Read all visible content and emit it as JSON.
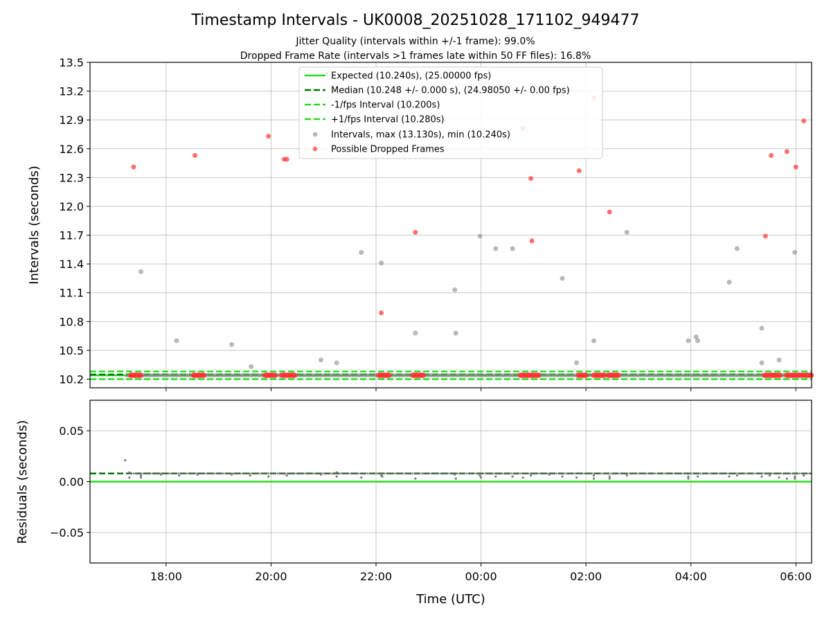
{
  "chart_data": [
    {
      "type": "scatter",
      "title": "Timestamp Intervals - UK0008_20251028_171102_949477",
      "subtitle_lines": [
        "Jitter Quality (intervals within +/-1 frame): 99.0%",
        "Dropped Frame Rate (intervals >1 frames late within 50 FF files): 16.8%"
      ],
      "ylabel": "Intervals (seconds)",
      "xlim": [
        16.55,
        30.3
      ],
      "ylim": [
        10.11,
        13.5
      ],
      "yticks": [
        10.2,
        10.5,
        10.8,
        11.1,
        11.4,
        11.7,
        12.0,
        12.3,
        12.6,
        12.9,
        13.2,
        13.5
      ],
      "ytick_labels": [
        "10.2",
        "10.5",
        "10.8",
        "11.1",
        "11.4",
        "11.7",
        "12.0",
        "12.3",
        "12.6",
        "12.9",
        "13.2",
        "13.5"
      ],
      "xticks": [
        18,
        20,
        22,
        24,
        26,
        28,
        30
      ],
      "grid": true,
      "legend_position": "top-center",
      "reference_lines": [
        {
          "name": "Expected (10.240s), (25.00000 fps)",
          "y": 10.24,
          "color": "#22dd22",
          "style": "solid"
        },
        {
          "name": "Median (10.248 +/- 0.000 s), (24.98050 +/- 0.00 fps)",
          "y": 10.248,
          "color": "#007700",
          "style": "dashed"
        },
        {
          "name": "-1/fps Interval (10.200s)",
          "y": 10.2,
          "color": "#22dd22",
          "style": "dashed"
        },
        {
          "name": "+1/fps Interval (10.280s)",
          "y": 10.28,
          "color": "#22dd22",
          "style": "dashed"
        }
      ],
      "series": [
        {
          "name": "Intervals, max (13.130s), min (10.240s)",
          "color": "#888888",
          "points": [
            [
              17.52,
              11.32
            ],
            [
              18.2,
              10.6
            ],
            [
              19.25,
              10.56
            ],
            [
              19.62,
              10.33
            ],
            [
              20.95,
              10.4
            ],
            [
              21.25,
              10.37
            ],
            [
              21.72,
              11.52
            ],
            [
              22.1,
              11.41
            ],
            [
              22.75,
              10.68
            ],
            [
              23.5,
              11.13
            ],
            [
              23.52,
              10.68
            ],
            [
              23.98,
              11.69
            ],
            [
              24.28,
              11.56
            ],
            [
              24.6,
              11.56
            ],
            [
              25.55,
              11.25
            ],
            [
              25.82,
              10.37
            ],
            [
              26.15,
              10.6
            ],
            [
              26.78,
              11.73
            ],
            [
              27.95,
              10.6
            ],
            [
              28.1,
              10.64
            ],
            [
              28.13,
              10.6
            ],
            [
              28.73,
              11.21
            ],
            [
              28.88,
              11.56
            ],
            [
              29.35,
              10.73
            ],
            [
              29.35,
              10.37
            ],
            [
              29.68,
              10.4
            ],
            [
              29.98,
              11.52
            ]
          ]
        },
        {
          "name": "Possible Dropped Frames",
          "color": "#ff3333",
          "points": [
            [
              17.38,
              12.41
            ],
            [
              18.55,
              12.53
            ],
            [
              19.95,
              12.73
            ],
            [
              20.25,
              12.49
            ],
            [
              20.3,
              12.49
            ],
            [
              22.1,
              10.89
            ],
            [
              22.75,
              11.73
            ],
            [
              24.8,
              12.81
            ],
            [
              24.95,
              12.29
            ],
            [
              24.97,
              11.64
            ],
            [
              25.87,
              12.37
            ],
            [
              26.15,
              13.13
            ],
            [
              26.45,
              11.94
            ],
            [
              29.42,
              11.69
            ],
            [
              29.53,
              12.53
            ],
            [
              29.83,
              12.57
            ],
            [
              30.0,
              12.41
            ],
            [
              30.15,
              12.89
            ]
          ],
          "baseline_clusters": [
            [
              17.32,
              17.52
            ],
            [
              18.52,
              18.72
            ],
            [
              19.88,
              20.08
            ],
            [
              20.2,
              20.45
            ],
            [
              22.05,
              22.25
            ],
            [
              22.7,
              22.9
            ],
            [
              24.75,
              25.12
            ],
            [
              25.85,
              26.02
            ],
            [
              26.15,
              26.35
            ],
            [
              26.42,
              26.62
            ],
            [
              29.4,
              29.72
            ],
            [
              29.82,
              30.3
            ]
          ],
          "baseline_y": 10.24
        }
      ]
    },
    {
      "type": "scatter",
      "ylabel": "Residuals (seconds)",
      "xlabel": "Time (UTC)",
      "xlim": [
        16.55,
        30.3
      ],
      "ylim": [
        -0.08,
        0.08
      ],
      "yticks": [
        -0.05,
        0.0,
        0.05
      ],
      "ytick_labels": [
        "−0.05",
        "0.00",
        "0.05"
      ],
      "xticks": [
        18,
        20,
        22,
        24,
        26,
        28,
        30
      ],
      "xtick_labels": [
        "18:00",
        "20:00",
        "22:00",
        "00:00",
        "02:00",
        "04:00",
        "06:00"
      ],
      "grid": true,
      "reference_lines": [
        {
          "name": "Expected",
          "y": 0.0,
          "color": "#22dd22",
          "style": "solid"
        },
        {
          "name": "Median",
          "y": 0.008,
          "color": "#007700",
          "style": "dashed"
        }
      ],
      "series": [
        {
          "name": "Residuals",
          "color": "#666666",
          "outliers": [
            [
              17.22,
              0.021
            ]
          ],
          "points": [
            [
              17.3,
              0.004
            ],
            [
              17.3,
              0.009
            ],
            [
              17.52,
              0.006
            ],
            [
              17.52,
              0.004
            ],
            [
              17.9,
              0.007
            ],
            [
              18.25,
              0.006
            ],
            [
              18.6,
              0.007
            ],
            [
              19.25,
              0.007
            ],
            [
              19.6,
              0.006
            ],
            [
              19.95,
              0.005
            ],
            [
              20.25,
              0.008
            ],
            [
              20.3,
              0.006
            ],
            [
              20.95,
              0.007
            ],
            [
              21.25,
              0.005
            ],
            [
              21.25,
              0.009
            ],
            [
              21.72,
              0.004
            ],
            [
              22.1,
              0.006
            ],
            [
              22.12,
              0.005
            ],
            [
              22.75,
              0.003
            ],
            [
              23.5,
              0.007
            ],
            [
              23.52,
              0.003
            ],
            [
              23.98,
              0.006
            ],
            [
              24.0,
              0.004
            ],
            [
              24.28,
              0.005
            ],
            [
              24.6,
              0.005
            ],
            [
              24.8,
              0.004
            ],
            [
              24.95,
              0.006
            ],
            [
              25.3,
              0.007
            ],
            [
              25.55,
              0.005
            ],
            [
              25.82,
              0.004
            ],
            [
              26.15,
              0.006
            ],
            [
              26.15,
              0.003
            ],
            [
              26.45,
              0.005
            ],
            [
              26.45,
              0.003
            ],
            [
              26.78,
              0.006
            ],
            [
              27.95,
              0.005
            ],
            [
              27.95,
              0.003
            ],
            [
              28.13,
              0.005
            ],
            [
              28.73,
              0.005
            ],
            [
              28.88,
              0.006
            ],
            [
              29.35,
              0.005
            ],
            [
              29.5,
              0.006
            ],
            [
              29.68,
              0.004
            ],
            [
              29.83,
              0.003
            ],
            [
              29.98,
              0.005
            ],
            [
              29.98,
              0.003
            ],
            [
              30.15,
              0.006
            ]
          ]
        }
      ]
    }
  ]
}
